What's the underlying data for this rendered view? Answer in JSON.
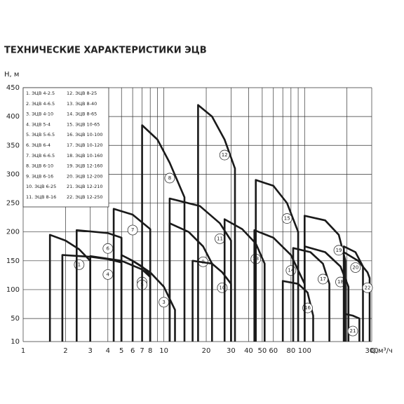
{
  "chart_data": {
    "type": "line",
    "title": "ТЕХНИЧЕСКИЕ ХАРАКТЕРИСТИКИ ЭЦВ",
    "ylabel": "H, м",
    "xlabel": "Q,м³/ч",
    "log_x": true,
    "grid": true,
    "color": "#1a1a1a",
    "xlim": [
      1,
      300
    ],
    "ylim": [
      10,
      450
    ],
    "xticks": [
      1,
      2,
      3,
      4,
      5,
      6,
      7,
      8,
      10,
      20,
      30,
      40,
      50,
      60,
      80,
      100,
      300
    ],
    "xgrid": [
      1,
      2,
      3,
      4,
      5,
      6,
      7,
      8,
      9,
      10,
      20,
      30,
      40,
      50,
      60,
      70,
      80,
      90,
      100,
      200,
      300
    ],
    "yticks": [
      10,
      50,
      100,
      150,
      200,
      250,
      300,
      350,
      400,
      450
    ],
    "series": [
      {
        "name": "1. ЭЦВ 4-2.5",
        "tag": "1",
        "x": [
          1.55,
          1.55,
          2,
          2.5,
          3,
          3
        ],
        "values": [
          10,
          195,
          185,
          170,
          150,
          10
        ]
      },
      {
        "name": "2. ЭЦВ 4-6.5",
        "tag": "2",
        "x": [
          5,
          5,
          6,
          7,
          8,
          8
        ],
        "values": [
          10,
          160,
          150,
          140,
          125,
          10
        ]
      },
      {
        "name": "3. ЭЦВ 4-10",
        "tag": "3",
        "x": [
          6,
          6,
          8,
          10,
          12,
          12
        ],
        "values": [
          10,
          150,
          130,
          105,
          65,
          10
        ]
      },
      {
        "name": "4. ЭЦВ 5-4",
        "tag": "4",
        "x": [
          1.9,
          1.9,
          3,
          4,
          5,
          5
        ],
        "values": [
          10,
          160,
          157,
          153,
          147,
          10
        ]
      },
      {
        "name": "5. ЭЦВ 5-6.5",
        "tag": "5",
        "x": [
          3,
          3,
          5,
          7,
          8,
          8
        ],
        "values": [
          10,
          158,
          150,
          135,
          122,
          10
        ]
      },
      {
        "name": "6. ЭЦВ 6-4",
        "tag": "6",
        "x": [
          2.4,
          2.4,
          4,
          5,
          5
        ],
        "values": [
          10,
          203,
          198,
          190,
          10
        ]
      },
      {
        "name": "7. ЭЦВ 6-6.5",
        "tag": "7",
        "x": [
          4.4,
          4.4,
          6,
          8,
          8
        ],
        "values": [
          10,
          240,
          230,
          205,
          10
        ]
      },
      {
        "name": "8. ЭЦВ 6-10",
        "tag": "8",
        "x": [
          7,
          7,
          9,
          11,
          14,
          14
        ],
        "values": [
          10,
          385,
          360,
          320,
          260,
          10
        ]
      },
      {
        "name": "9. ЭЦВ 6-16",
        "tag": "9",
        "x": [
          11,
          11,
          15,
          19,
          22,
          22
        ],
        "values": [
          10,
          215,
          200,
          175,
          145,
          10
        ]
      },
      {
        "name": "10. ЭЦВ 6-25",
        "tag": "10",
        "x": [
          16,
          16,
          22,
          26,
          30,
          30
        ],
        "values": [
          10,
          150,
          145,
          130,
          110,
          10
        ]
      },
      {
        "name": "11. ЭЦВ 8-16",
        "tag": "11",
        "x": [
          11,
          11,
          18,
          25,
          30,
          30
        ],
        "values": [
          10,
          258,
          245,
          215,
          185,
          10
        ]
      },
      {
        "name": "12. ЭЦВ 8-25",
        "tag": "12",
        "x": [
          17.5,
          17.5,
          22,
          27,
          32,
          32
        ],
        "values": [
          10,
          420,
          400,
          360,
          310,
          10
        ]
      },
      {
        "name": "13. ЭЦВ 8-40",
        "tag": "13",
        "x": [
          27,
          27,
          36,
          45,
          52,
          52
        ],
        "values": [
          10,
          222,
          205,
          180,
          145,
          10
        ]
      },
      {
        "name": "14. ЭЦВ 8-65",
        "tag": "14",
        "x": [
          44,
          44,
          60,
          80,
          100,
          100
        ],
        "values": [
          10,
          203,
          190,
          160,
          110,
          10
        ]
      },
      {
        "name": "15. ЭЦВ 10-65",
        "tag": "15",
        "x": [
          45,
          45,
          60,
          75,
          90,
          90
        ],
        "values": [
          10,
          290,
          280,
          250,
          200,
          10
        ]
      },
      {
        "name": "16. ЭЦВ 10-100",
        "tag": "16",
        "x": [
          70,
          70,
          90,
          105,
          115,
          115
        ],
        "values": [
          10,
          115,
          110,
          95,
          55,
          10
        ]
      },
      {
        "name": "17. ЭЦВ 10-120",
        "tag": "17",
        "x": [
          83,
          83,
          110,
          135,
          150,
          150
        ],
        "values": [
          10,
          172,
          165,
          145,
          110,
          10
        ]
      },
      {
        "name": "18. ЭЦВ 10-160",
        "tag": "18",
        "x": [
          100,
          100,
          140,
          180,
          205,
          205
        ],
        "values": [
          10,
          175,
          165,
          140,
          105,
          10
        ]
      },
      {
        "name": "19. ЭЦВ 12-160",
        "tag": "19",
        "x": [
          100,
          100,
          140,
          175,
          195,
          195
        ],
        "values": [
          10,
          228,
          220,
          195,
          150,
          10
        ]
      },
      {
        "name": "20. ЭЦВ 12-200",
        "tag": "20",
        "x": [
          190,
          190,
          230,
          260,
          260
        ],
        "values": [
          10,
          175,
          165,
          140,
          10
        ]
      },
      {
        "name": "21. ЭЦВ 12-210",
        "tag": "21",
        "x": [
          192,
          192,
          220,
          245,
          245
        ],
        "values": [
          10,
          58,
          55,
          50,
          10
        ]
      },
      {
        "name": "22. ЭЦВ 12-250",
        "tag": "22",
        "x": [
          190,
          190,
          240,
          280,
          290,
          290
        ],
        "values": [
          10,
          165,
          150,
          130,
          120,
          10
        ]
      }
    ]
  }
}
